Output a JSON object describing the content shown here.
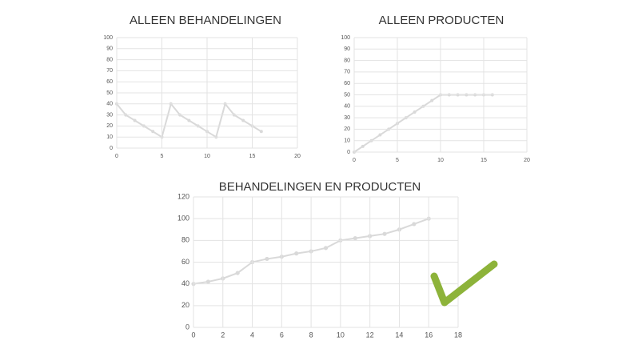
{
  "chart_data": [
    {
      "type": "line",
      "title": "ALLEEN BEHANDELINGEN",
      "x": [
        0,
        1,
        2,
        3,
        4,
        5,
        6,
        7,
        8,
        9,
        10,
        11,
        12,
        13,
        14,
        15,
        16
      ],
      "values": [
        40,
        30,
        25,
        20,
        15,
        10,
        40,
        30,
        25,
        20,
        15,
        10,
        40,
        30,
        25,
        20,
        15
      ],
      "color": "#d9d9d9",
      "xlim": [
        0,
        20
      ],
      "xticks": [
        0,
        5,
        10,
        15,
        20
      ],
      "ylim": [
        0,
        100
      ],
      "yticks": [
        0,
        10,
        20,
        30,
        40,
        50,
        60,
        70,
        80,
        90,
        100
      ],
      "grid": true
    },
    {
      "type": "line",
      "title": "ALLEEN PRODUCTEN",
      "x": [
        0,
        1,
        2,
        3,
        4,
        5,
        6,
        7,
        8,
        9,
        10,
        11,
        12,
        13,
        14,
        15,
        16
      ],
      "values": [
        0,
        5,
        10,
        15,
        20,
        25,
        30,
        35,
        40,
        45,
        50,
        50,
        50,
        50,
        50,
        50,
        50
      ],
      "color": "#d9d9d9",
      "xlim": [
        0,
        20
      ],
      "xticks": [
        0,
        5,
        10,
        15,
        20
      ],
      "ylim": [
        0,
        100
      ],
      "yticks": [
        0,
        10,
        20,
        30,
        40,
        50,
        60,
        70,
        80,
        90,
        100
      ],
      "grid": true
    },
    {
      "type": "line",
      "title": "BEHANDELINGEN EN PRODUCTEN",
      "x": [
        0,
        1,
        2,
        3,
        4,
        5,
        6,
        7,
        8,
        9,
        10,
        11,
        12,
        13,
        14,
        15,
        16
      ],
      "values": [
        40,
        42,
        45,
        50,
        60,
        63,
        65,
        68,
        70,
        73,
        80,
        82,
        84,
        86,
        90,
        95,
        100
      ],
      "color": "#d9d9d9",
      "xlim": [
        0,
        18
      ],
      "xticks": [
        0,
        2,
        4,
        6,
        8,
        10,
        12,
        14,
        16,
        18
      ],
      "ylim": [
        0,
        120
      ],
      "yticks": [
        0,
        20,
        40,
        60,
        80,
        100,
        120
      ],
      "grid": true
    }
  ]
}
